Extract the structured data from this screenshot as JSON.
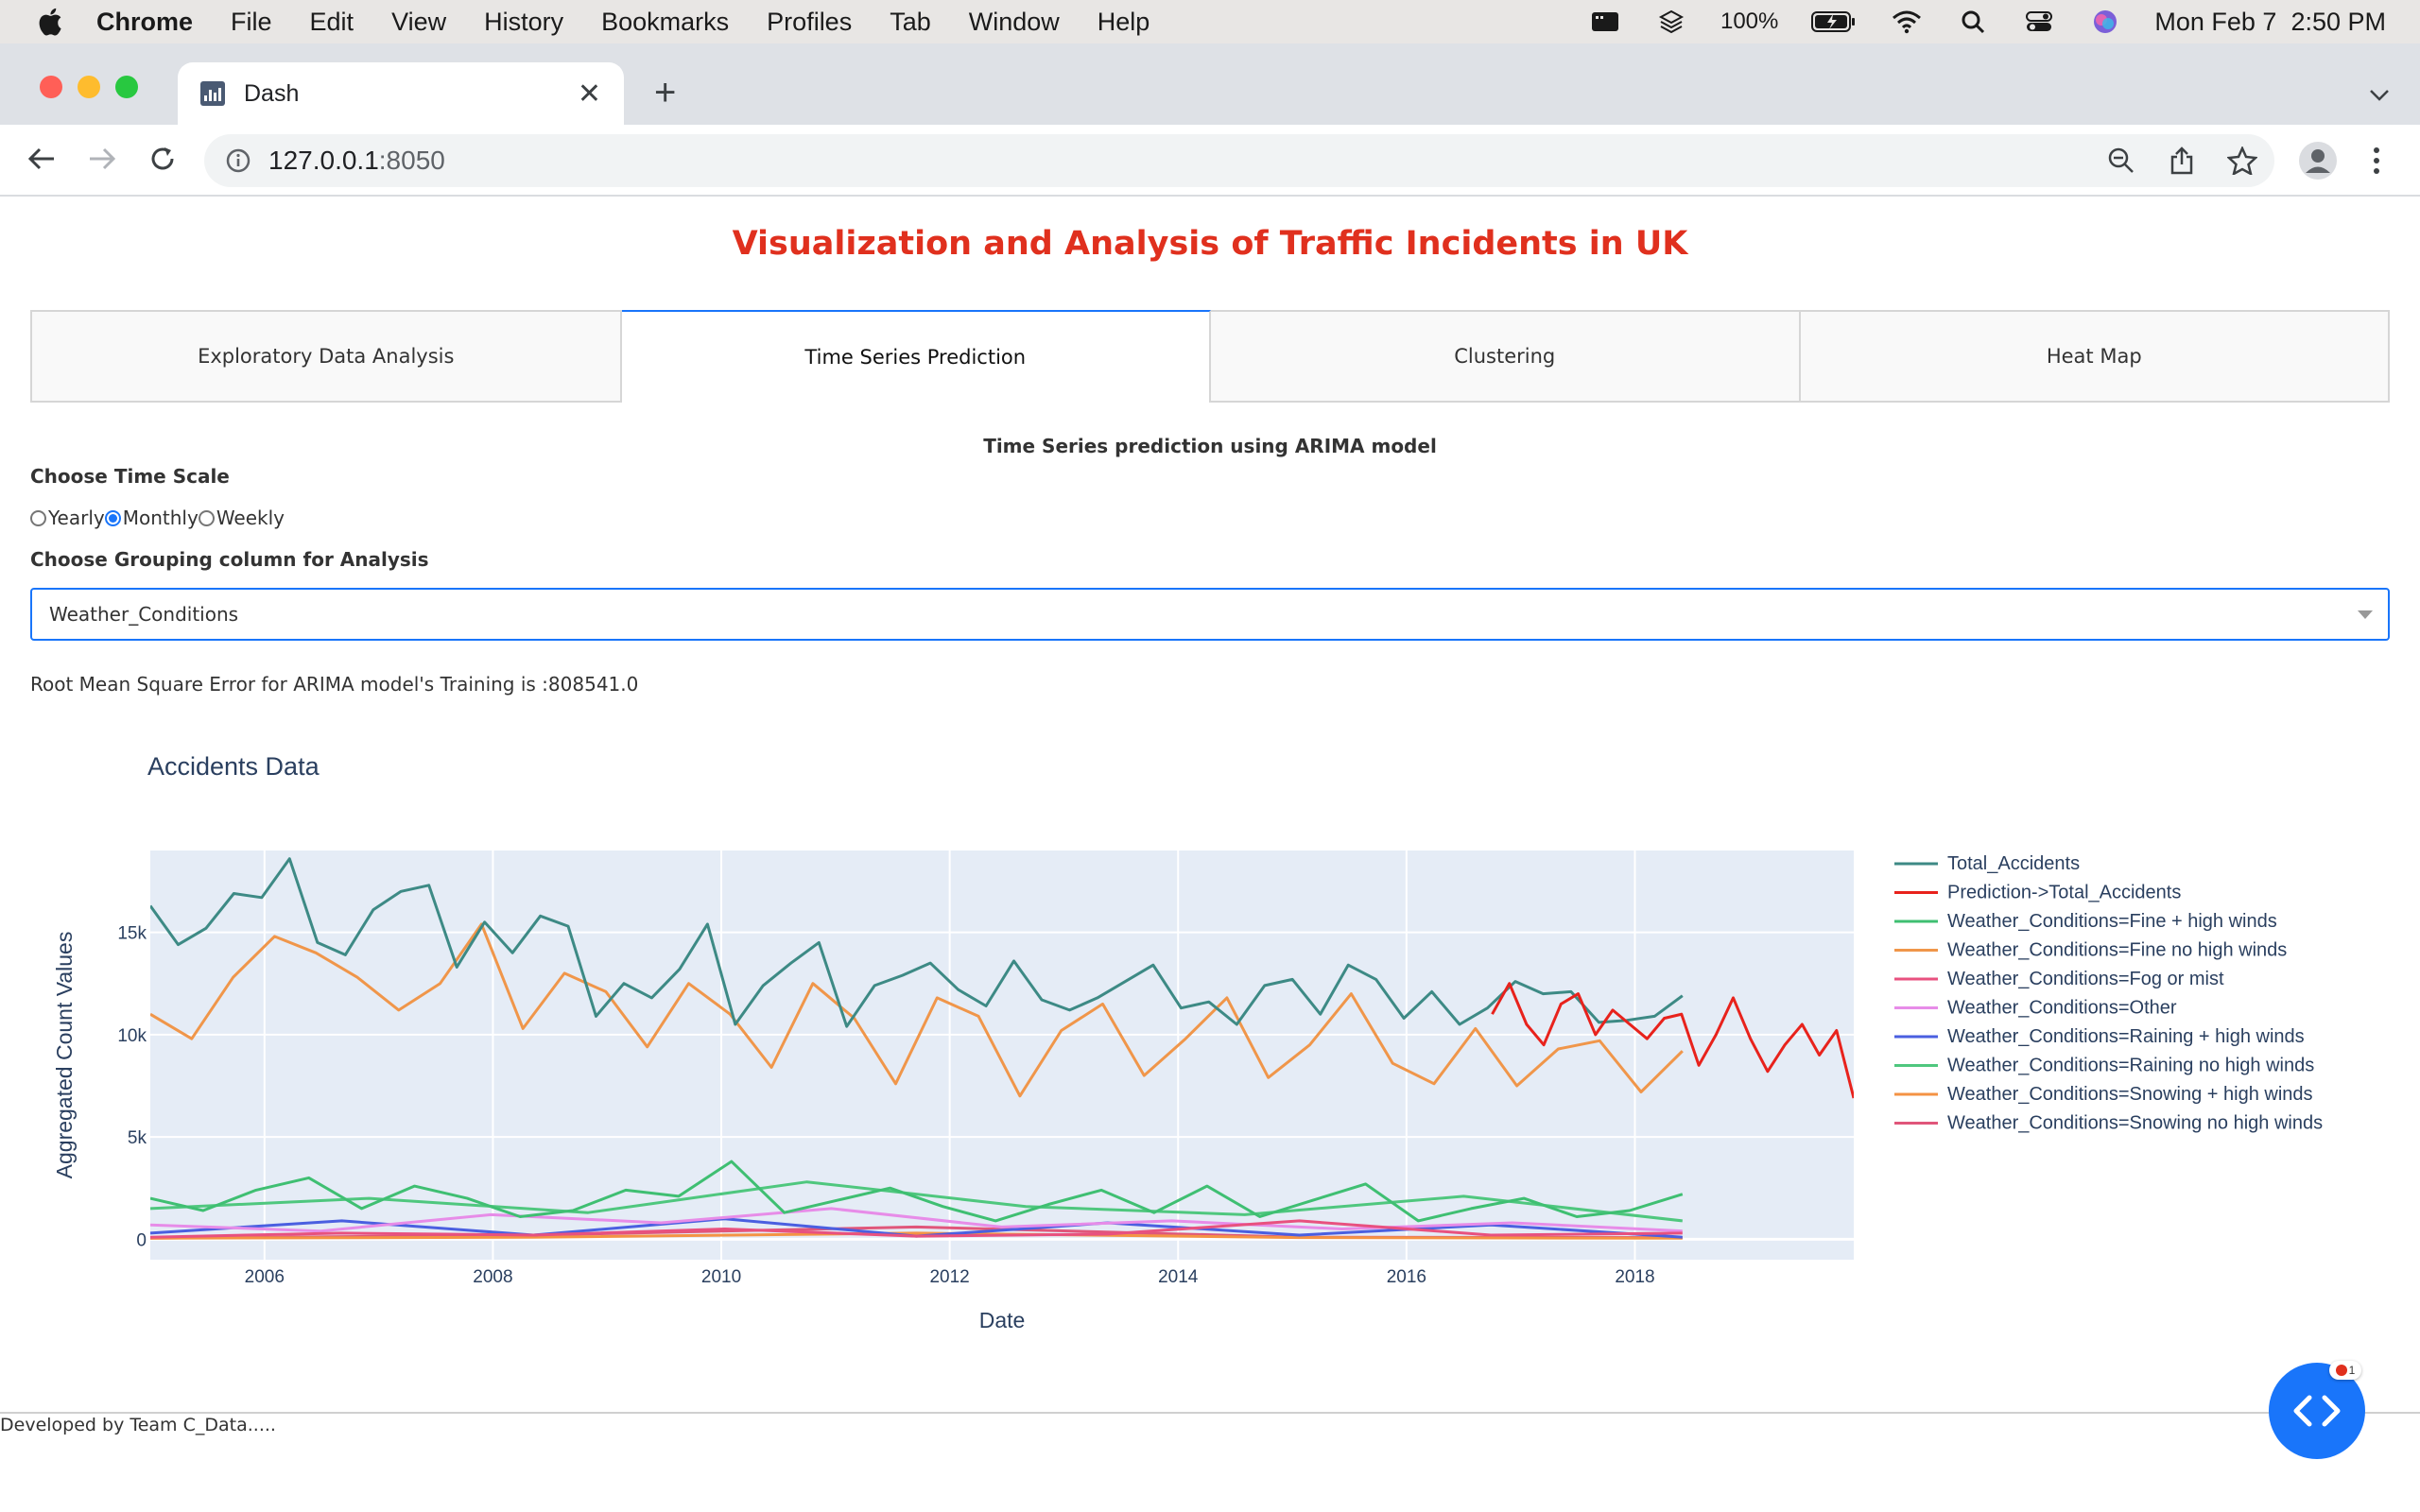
{
  "menubar": {
    "app": "Chrome",
    "items": [
      "File",
      "Edit",
      "View",
      "History",
      "Bookmarks",
      "Profiles",
      "Tab",
      "Window",
      "Help"
    ],
    "battery": "100%",
    "datetime": "Mon Feb 7  2:50 PM"
  },
  "browser": {
    "tab_title": "Dash",
    "url_host": "127.0.0.1",
    "url_port": ":8050"
  },
  "page": {
    "title": "Visualization and Analysis of Traffic Incidents in UK",
    "tabs": [
      "Exploratory Data Analysis",
      "Time Series Prediction",
      "Clustering",
      "Heat Map"
    ],
    "selected_tab": "Time Series Prediction",
    "section_heading": "Time Series prediction using ARIMA model",
    "time_scale_label": "Choose Time Scale",
    "time_scale_options": [
      "Yearly",
      "Monthly",
      "Weekly"
    ],
    "time_scale_selected": "Monthly",
    "grouping_label": "Choose Grouping column for Analysis",
    "grouping_value": "Weather_Conditions",
    "rmse_text": "Root Mean Square Error for ARIMA model's Training is :808541.0",
    "footer": "Developed by Team C_Data.....",
    "debug_badge_count": "1"
  },
  "chart_data": {
    "type": "line",
    "title": "Accidents Data",
    "xlabel": "Date",
    "ylabel": "Aggregated Count Values",
    "x_ticks": [
      "2006",
      "2008",
      "2010",
      "2012",
      "2014",
      "2016",
      "2018"
    ],
    "y_ticks": [
      "0",
      "5k",
      "10k",
      "15k"
    ],
    "xlim": [
      "2005-01",
      "2019-12"
    ],
    "ylim": [
      -1000,
      19000
    ],
    "grid": true,
    "legend_position": "right",
    "colors": {
      "Total_Accidents": "#3d8a85",
      "Prediction->Total_Accidents": "#e8221c",
      "Weather_Conditions=Fine + high winds": "#3fbf72",
      "Weather_Conditions=Fine no high winds": "#f0964a",
      "Weather_Conditions=Fog or mist": "#e8517f",
      "Weather_Conditions=Other": "#e78ce8",
      "Weather_Conditions=Raining + high winds": "#4a5fe0",
      "Weather_Conditions=Raining no high winds": "#4fc77e",
      "Weather_Conditions=Snowing + high winds": "#f49344",
      "Weather_Conditions=Snowing no high winds": "#e0567a"
    },
    "series": [
      {
        "name": "Total_Accidents",
        "start": "2005-01",
        "end": "2018-06",
        "values_approx": [
          16300,
          14400,
          15200,
          16900,
          16700,
          18600,
          14500,
          13900,
          16100,
          17000,
          17300,
          13300,
          15500,
          14000,
          15800,
          15300,
          10900,
          12500,
          11800,
          13200,
          15400,
          10500,
          12400,
          13500,
          14500,
          10400,
          12400,
          12900,
          13500,
          12200,
          11400,
          13600,
          11700,
          11200,
          11800,
          12600,
          13400,
          11300,
          11600,
          10500,
          12400,
          12700,
          11000,
          13400,
          12700,
          10800,
          12100,
          10500,
          11300,
          12600,
          12000,
          12100,
          10600,
          10700,
          10900,
          11900
        ]
      },
      {
        "name": "Prediction->Total_Accidents",
        "start": "2016-10",
        "end": "2019-12",
        "values_approx": [
          11000,
          12500,
          10500,
          9500,
          11500,
          12000,
          10000,
          11200,
          10500,
          9800,
          10800,
          11000,
          8500,
          10000,
          11800,
          9800,
          8200,
          9500,
          10500,
          9000,
          10200,
          6900
        ]
      },
      {
        "name": "Weather_Conditions=Fine + high winds",
        "start": "2005-01",
        "end": "2018-06",
        "values_approx": [
          2000,
          1400,
          2400,
          3000,
          1500,
          2600,
          2000,
          1100,
          1400,
          2400,
          2100,
          3800,
          1300,
          1900,
          2500,
          1600,
          900,
          1700,
          2400,
          1300,
          2600,
          1100,
          1900,
          2700,
          900,
          1500,
          2000,
          1100,
          1400,
          2200
        ]
      },
      {
        "name": "Weather_Conditions=Fine no high winds",
        "start": "2005-01",
        "end": "2018-06",
        "values_approx": [
          11000,
          9800,
          12800,
          14800,
          14000,
          12800,
          11200,
          12500,
          15400,
          10300,
          13000,
          12100,
          9400,
          12500,
          11000,
          8400,
          12500,
          10800,
          7600,
          11800,
          10900,
          7000,
          10200,
          11500,
          8000,
          9800,
          11800,
          7900,
          9500,
          12000,
          8600,
          7600,
          10300,
          7500,
          9300,
          9700,
          7200,
          9200
        ]
      },
      {
        "name": "Weather_Conditions=Fog or mist",
        "start": "2005-01",
        "end": "2018-06",
        "values_approx": [
          100,
          300,
          200,
          500,
          150,
          250,
          900,
          200,
          300
        ]
      },
      {
        "name": "Weather_Conditions=Other",
        "start": "2005-01",
        "end": "2018-06",
        "values_approx": [
          700,
          400,
          1200,
          800,
          1500,
          600,
          900,
          500,
          800,
          400
        ]
      },
      {
        "name": "Weather_Conditions=Raining + high winds",
        "start": "2005-01",
        "end": "2018-06",
        "values_approx": [
          300,
          900,
          200,
          1000,
          150,
          800,
          200,
          700,
          100
        ]
      },
      {
        "name": "Weather_Conditions=Raining no high winds",
        "start": "2005-01",
        "end": "2018-06",
        "values_approx": [
          1500,
          2000,
          1300,
          2800,
          1600,
          1200,
          2100,
          900
        ]
      },
      {
        "name": "Weather_Conditions=Snowing + high winds",
        "start": "2005-01",
        "end": "2018-06",
        "values_approx": [
          50,
          100,
          300,
          80,
          50
        ]
      },
      {
        "name": "Weather_Conditions=Snowing no high winds",
        "start": "2005-01",
        "end": "2018-06",
        "values_approx": [
          50,
          200,
          600,
          100,
          80
        ]
      }
    ]
  }
}
